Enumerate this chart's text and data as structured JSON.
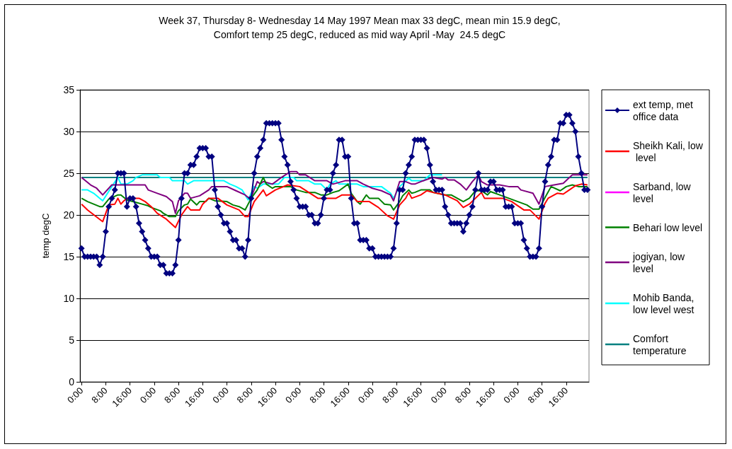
{
  "chart_data": {
    "type": "line",
    "title": "Week 37, Thursday 8- Wednesday 14 May 1997 Mean max 33 degC, mean min 15.9 degC,\nComfort temp 25 degC, reduced as mid way April -May  24.5 degC",
    "ylabel": "temp degC",
    "x": [
      "1997-05-08T00:00",
      "1997-05-08T01:00",
      "1997-05-08T02:00",
      "1997-05-08T03:00",
      "1997-05-08T04:00",
      "1997-05-08T05:00",
      "1997-05-08T06:00",
      "1997-05-08T07:00",
      "1997-05-08T08:00",
      "1997-05-08T09:00",
      "1997-05-08T10:00",
      "1997-05-08T11:00",
      "1997-05-08T12:00",
      "1997-05-08T13:00",
      "1997-05-08T14:00",
      "1997-05-08T15:00",
      "1997-05-08T16:00",
      "1997-05-08T17:00",
      "1997-05-08T18:00",
      "1997-05-08T19:00",
      "1997-05-08T20:00",
      "1997-05-08T21:00",
      "1997-05-08T22:00",
      "1997-05-08T23:00",
      "1997-05-09T00:00",
      "1997-05-09T01:00",
      "1997-05-09T02:00",
      "1997-05-09T03:00",
      "1997-05-09T04:00",
      "1997-05-09T05:00",
      "1997-05-09T06:00",
      "1997-05-09T07:00",
      "1997-05-09T08:00",
      "1997-05-09T09:00",
      "1997-05-09T10:00",
      "1997-05-09T11:00",
      "1997-05-09T12:00",
      "1997-05-09T13:00",
      "1997-05-09T14:00",
      "1997-05-09T15:00",
      "1997-05-09T16:00",
      "1997-05-09T17:00",
      "1997-05-09T18:00",
      "1997-05-09T19:00",
      "1997-05-09T20:00",
      "1997-05-09T21:00",
      "1997-05-09T22:00",
      "1997-05-09T23:00",
      "1997-05-10T00:00",
      "1997-05-10T01:00",
      "1997-05-10T02:00",
      "1997-05-10T03:00",
      "1997-05-10T04:00",
      "1997-05-10T05:00",
      "1997-05-10T06:00",
      "1997-05-10T07:00",
      "1997-05-10T08:00",
      "1997-05-10T09:00",
      "1997-05-10T10:00",
      "1997-05-10T11:00",
      "1997-05-10T12:00",
      "1997-05-10T13:00",
      "1997-05-10T14:00",
      "1997-05-10T15:00",
      "1997-05-10T16:00",
      "1997-05-10T17:00",
      "1997-05-10T18:00",
      "1997-05-10T19:00",
      "1997-05-10T20:00",
      "1997-05-10T21:00",
      "1997-05-10T22:00",
      "1997-05-10T23:00",
      "1997-05-11T00:00",
      "1997-05-11T01:00",
      "1997-05-11T02:00",
      "1997-05-11T03:00",
      "1997-05-11T04:00",
      "1997-05-11T05:00",
      "1997-05-11T06:00",
      "1997-05-11T07:00",
      "1997-05-11T08:00",
      "1997-05-11T09:00",
      "1997-05-11T10:00",
      "1997-05-11T11:00",
      "1997-05-11T12:00",
      "1997-05-11T13:00",
      "1997-05-11T14:00",
      "1997-05-11T15:00",
      "1997-05-11T16:00",
      "1997-05-11T17:00",
      "1997-05-11T18:00",
      "1997-05-11T19:00",
      "1997-05-11T20:00",
      "1997-05-11T21:00",
      "1997-05-11T22:00",
      "1997-05-11T23:00",
      "1997-05-12T00:00",
      "1997-05-12T01:00",
      "1997-05-12T02:00",
      "1997-05-12T03:00",
      "1997-05-12T04:00",
      "1997-05-12T05:00",
      "1997-05-12T06:00",
      "1997-05-12T07:00",
      "1997-05-12T08:00",
      "1997-05-12T09:00",
      "1997-05-12T10:00",
      "1997-05-12T11:00",
      "1997-05-12T12:00",
      "1997-05-12T13:00",
      "1997-05-12T14:00",
      "1997-05-12T15:00",
      "1997-05-12T16:00",
      "1997-05-12T17:00",
      "1997-05-12T18:00",
      "1997-05-12T19:00",
      "1997-05-12T20:00",
      "1997-05-12T21:00",
      "1997-05-12T22:00",
      "1997-05-12T23:00",
      "1997-05-13T00:00",
      "1997-05-13T01:00",
      "1997-05-13T02:00",
      "1997-05-13T03:00",
      "1997-05-13T04:00",
      "1997-05-13T05:00",
      "1997-05-13T06:00",
      "1997-05-13T07:00",
      "1997-05-13T08:00",
      "1997-05-13T09:00",
      "1997-05-13T10:00",
      "1997-05-13T11:00",
      "1997-05-13T12:00",
      "1997-05-13T13:00",
      "1997-05-13T14:00",
      "1997-05-13T15:00",
      "1997-05-13T16:00",
      "1997-05-13T17:00",
      "1997-05-13T18:00",
      "1997-05-13T19:00",
      "1997-05-13T20:00",
      "1997-05-13T21:00",
      "1997-05-13T22:00",
      "1997-05-13T23:00",
      "1997-05-14T00:00",
      "1997-05-14T01:00",
      "1997-05-14T02:00",
      "1997-05-14T03:00",
      "1997-05-14T04:00",
      "1997-05-14T05:00",
      "1997-05-14T06:00",
      "1997-05-14T07:00",
      "1997-05-14T08:00",
      "1997-05-14T09:00",
      "1997-05-14T10:00",
      "1997-05-14T11:00",
      "1997-05-14T12:00",
      "1997-05-14T13:00",
      "1997-05-14T14:00",
      "1997-05-14T15:00",
      "1997-05-14T16:00",
      "1997-05-14T17:00",
      "1997-05-14T18:00",
      "1997-05-14T19:00",
      "1997-05-14T20:00",
      "1997-05-14T21:00",
      "1997-05-14T22:00",
      "1997-05-14T23:00"
    ],
    "xlim": [
      "1997-05-07T23:30",
      "1997-05-14T23:30"
    ],
    "xticks": [
      {
        "value": "1997-05-08T00:00",
        "label": "0:00"
      },
      {
        "value": "1997-05-08T08:00",
        "label": "8:00"
      },
      {
        "value": "1997-05-08T16:00",
        "label": "16:00"
      },
      {
        "value": "1997-05-09T00:00",
        "label": "0:00"
      },
      {
        "value": "1997-05-09T08:00",
        "label": "8:00"
      },
      {
        "value": "1997-05-09T16:00",
        "label": "16:00"
      },
      {
        "value": "1997-05-10T00:00",
        "label": "0:00"
      },
      {
        "value": "1997-05-10T08:00",
        "label": "8:00"
      },
      {
        "value": "1997-05-10T16:00",
        "label": "16:00"
      },
      {
        "value": "1997-05-11T00:00",
        "label": "0:00"
      },
      {
        "value": "1997-05-11T08:00",
        "label": "8:00"
      },
      {
        "value": "1997-05-11T16:00",
        "label": "16:00"
      },
      {
        "value": "1997-05-12T00:00",
        "label": "0:00"
      },
      {
        "value": "1997-05-12T08:00",
        "label": "8:00"
      },
      {
        "value": "1997-05-12T16:00",
        "label": "16:00"
      },
      {
        "value": "1997-05-13T00:00",
        "label": "0:00"
      },
      {
        "value": "1997-05-13T08:00",
        "label": "8:00"
      },
      {
        "value": "1997-05-13T16:00",
        "label": "16:00"
      },
      {
        "value": "1997-05-14T00:00",
        "label": "0:00"
      },
      {
        "value": "1997-05-14T08:00",
        "label": "8:00"
      },
      {
        "value": "1997-05-14T16:00",
        "label": "16:00"
      }
    ],
    "ylim": [
      0,
      35
    ],
    "yticks": [
      0,
      5,
      10,
      15,
      20,
      25,
      30,
      35
    ],
    "grid": "y",
    "legend": "right",
    "marker": "none",
    "series": [
      {
        "name": "ext temp, met office data",
        "color": "#000080",
        "marker": "diamond",
        "values": [
          16,
          15,
          15,
          15,
          15,
          15,
          14,
          15,
          18,
          21,
          22,
          23,
          25,
          25,
          25,
          21,
          22,
          22,
          21,
          19,
          18,
          17,
          16,
          15,
          15,
          15,
          14,
          14,
          13,
          13,
          13,
          14,
          17,
          22,
          25,
          25,
          26,
          26,
          27,
          28,
          28,
          28,
          27,
          27,
          23,
          21,
          20,
          19,
          19,
          18,
          17,
          17,
          16,
          16,
          15,
          17,
          22,
          25,
          27,
          28,
          29,
          31,
          31,
          31,
          31,
          31,
          29,
          27,
          26,
          24,
          23,
          22,
          21,
          21,
          21,
          20,
          20,
          19,
          19,
          20,
          22,
          23,
          23,
          25,
          26,
          29,
          29,
          27,
          27,
          22,
          19,
          19,
          17,
          17,
          17,
          16,
          16,
          15,
          15,
          15,
          15,
          15,
          15,
          16,
          19,
          23,
          23,
          25,
          26,
          27,
          29,
          29,
          29,
          29,
          28,
          26,
          24,
          23,
          23,
          23,
          21,
          20,
          19,
          19,
          19,
          19,
          18,
          19,
          20,
          21,
          23,
          25,
          23,
          23,
          23,
          24,
          24,
          23,
          23,
          23,
          21,
          21,
          21,
          19,
          19,
          19,
          17,
          16,
          15,
          15,
          15,
          16,
          21,
          24,
          26,
          27,
          29,
          29,
          31,
          31,
          32,
          32,
          31,
          30,
          27,
          25,
          23,
          23
        ]
      },
      {
        "name": "Sheikh Kali, low level",
        "color": "#ff0000",
        "x": [
          "1997-05-08T00:00",
          "1997-05-08T02:00",
          "1997-05-08T07:00",
          "1997-05-08T09:00",
          "1997-05-08T11:00",
          "1997-05-08T12:00",
          "1997-05-08T13:00",
          "1997-05-08T14:00",
          "1997-05-08T15:00",
          "1997-05-08T19:00",
          "1997-05-08T21:00",
          "1997-05-08T23:00",
          "1997-05-09T01:00",
          "1997-05-09T04:00",
          "1997-05-09T07:00",
          "1997-05-09T09:00",
          "1997-05-09T11:00",
          "1997-05-09T12:00",
          "1997-05-09T15:00",
          "1997-05-09T16:00",
          "1997-05-09T18:00",
          "1997-05-09T21:00",
          "1997-05-10T00:00",
          "1997-05-10T04:00",
          "1997-05-10T06:00",
          "1997-05-10T07:00",
          "1997-05-10T09:00",
          "1997-05-10T12:00",
          "1997-05-10T13:00",
          "1997-05-10T16:00",
          "1997-05-10T20:00",
          "1997-05-11T00:00",
          "1997-05-11T03:00",
          "1997-05-11T06:00",
          "1997-05-11T12:00",
          "1997-05-11T14:00",
          "1997-05-11T17:00",
          "1997-05-11T19:00",
          "1997-05-11T23:00",
          "1997-05-12T02:00",
          "1997-05-12T05:00",
          "1997-05-12T07:00",
          "1997-05-12T09:00",
          "1997-05-12T11:00",
          "1997-05-12T12:00",
          "1997-05-12T13:00",
          "1997-05-12T16:00",
          "1997-05-12T18:00",
          "1997-05-12T20:00",
          "1997-05-13T00:00",
          "1997-05-13T04:00",
          "1997-05-13T06:00",
          "1997-05-13T08:00",
          "1997-05-13T12:00",
          "1997-05-13T13:00",
          "1997-05-13T19:00",
          "1997-05-13T22:00",
          "1997-05-14T02:00",
          "1997-05-14T04:00",
          "1997-05-14T07:00",
          "1997-05-14T09:00",
          "1997-05-14T10:00",
          "1997-05-14T13:00",
          "1997-05-14T15:00",
          "1997-05-14T17:00",
          "1997-05-14T19:00",
          "1997-05-14T21:00",
          "1997-05-14T23:00"
        ],
        "values": [
          21.3,
          20.6,
          19.2,
          21.2,
          21.3,
          22,
          21.3,
          21.7,
          22,
          22,
          21.6,
          21,
          20.2,
          19.5,
          18.5,
          20,
          21,
          20.6,
          20.6,
          21.3,
          22,
          22,
          21.2,
          20.6,
          19.8,
          19.8,
          21.6,
          23,
          22.3,
          23,
          23.6,
          23.4,
          22.7,
          22,
          22,
          22.4,
          22.4,
          21.6,
          21.6,
          20.9,
          19.9,
          19.5,
          21.2,
          22,
          22.7,
          22,
          22.4,
          22.9,
          22.7,
          22.4,
          21.7,
          20.9,
          21.3,
          22.7,
          22,
          22,
          21.6,
          20.6,
          20.6,
          19.5,
          21.4,
          22,
          22.6,
          22.5,
          23,
          23.5,
          23.7,
          23.6
        ]
      },
      {
        "name": "Sarband, low level",
        "color": "#ff00ff",
        "values": [
          null,
          null,
          null,
          null,
          null,
          null,
          null,
          null,
          null,
          null,
          null,
          null,
          null,
          null,
          null,
          null,
          null,
          null,
          null,
          null,
          null,
          null,
          null,
          null,
          null,
          null,
          null,
          null,
          null,
          null,
          null,
          null,
          null,
          null,
          null,
          null,
          null,
          null,
          null,
          null,
          null,
          null,
          null,
          null,
          null,
          null,
          null,
          null,
          null,
          null,
          null,
          null,
          null,
          null,
          null,
          null,
          null,
          null,
          null,
          null,
          null,
          null,
          null,
          null,
          null,
          null,
          null,
          null,
          null,
          null,
          null,
          null,
          null,
          null,
          null,
          null,
          null,
          null,
          null,
          null,
          null,
          null,
          null,
          null,
          null,
          null,
          null,
          null,
          null,
          null,
          null,
          null,
          null,
          null,
          null,
          null,
          null,
          null,
          null,
          null,
          null,
          null,
          null,
          null,
          null,
          null,
          null,
          null,
          null,
          null,
          null,
          null,
          null,
          null,
          null,
          null,
          null,
          null,
          null,
          null,
          null,
          null,
          null,
          null,
          null,
          null,
          null,
          null,
          null,
          null,
          null,
          null,
          null,
          null,
          null,
          null,
          null,
          null,
          null,
          null,
          null,
          null,
          null,
          null,
          null,
          null,
          null,
          null,
          null,
          null,
          null,
          null,
          null,
          null,
          null,
          null,
          null,
          null,
          null,
          null,
          null,
          null,
          null,
          null,
          null,
          null,
          null,
          null
        ]
      },
      {
        "name": "Behari low level",
        "color": "#008000",
        "x": [
          "1997-05-08T00:00",
          "1997-05-08T02:00",
          "1997-05-08T04:00",
          "1997-05-08T06:00",
          "1997-05-08T07:00",
          "1997-05-08T09:00",
          "1997-05-08T12:00",
          "1997-05-08T13:00",
          "1997-05-08T15:00",
          "1997-05-08T18:00",
          "1997-05-08T20:00",
          "1997-05-08T22:00",
          "1997-05-08T23:00",
          "1997-05-09T02:00",
          "1997-05-09T03:00",
          "1997-05-09T05:00",
          "1997-05-09T07:00",
          "1997-05-09T08:00",
          "1997-05-09T10:00",
          "1997-05-09T11:00",
          "1997-05-09T12:00",
          "1997-05-09T14:00",
          "1997-05-09T15:00",
          "1997-05-09T17:00",
          "1997-05-09T18:00",
          "1997-05-09T20:00",
          "1997-05-10T00:00",
          "1997-05-10T02:00",
          "1997-05-10T04:00",
          "1997-05-10T06:00",
          "1997-05-10T08:00",
          "1997-05-10T10:00",
          "1997-05-10T12:00",
          "1997-05-10T13:00",
          "1997-05-10T15:00",
          "1997-05-10T16:00",
          "1997-05-10T21:00",
          "1997-05-10T23:00",
          "1997-05-11T02:00",
          "1997-05-11T05:00",
          "1997-05-11T07:00",
          "1997-05-11T09:00",
          "1997-05-11T11:00",
          "1997-05-11T13:00",
          "1997-05-11T16:00",
          "1997-05-11T17:00",
          "1997-05-11T19:00",
          "1997-05-11T20:00",
          "1997-05-11T22:00",
          "1997-05-11T23:00",
          "1997-05-12T02:00",
          "1997-05-12T04:00",
          "1997-05-12T06:00",
          "1997-05-12T07:00",
          "1997-05-12T09:00",
          "1997-05-12T10:00",
          "1997-05-12T12:00",
          "1997-05-12T13:00",
          "1997-05-12T14:00",
          "1997-05-12T16:00",
          "1997-05-12T19:00",
          "1997-05-12T20:00",
          "1997-05-13T00:00",
          "1997-05-13T02:00",
          "1997-05-13T04:00",
          "1997-05-13T06:00",
          "1997-05-13T08:00",
          "1997-05-13T10:00",
          "1997-05-13T12:00",
          "1997-05-13T14:00",
          "1997-05-13T15:00",
          "1997-05-13T18:00",
          "1997-05-13T21:00",
          "1997-05-14T00:00",
          "1997-05-14T03:00",
          "1997-05-14T05:00",
          "1997-05-14T07:00",
          "1997-05-14T09:00",
          "1997-05-14T11:00",
          "1997-05-14T14:00",
          "1997-05-14T16:00",
          "1997-05-14T18:00",
          "1997-05-14T20:00",
          "1997-05-14T23:00"
        ],
        "values": [
          22,
          21.6,
          21.3,
          21,
          21,
          21.9,
          22.4,
          22.4,
          21.8,
          21.5,
          21.3,
          21.1,
          20.9,
          20.5,
          20.2,
          19.8,
          19.8,
          20.5,
          21.2,
          21.3,
          21.9,
          21.2,
          21.6,
          21.6,
          22,
          21.7,
          21.6,
          21.2,
          21,
          20.6,
          22,
          23,
          24.5,
          23.7,
          23.2,
          23.4,
          23.4,
          23,
          22.7,
          22.7,
          22.4,
          22.4,
          22.7,
          22.9,
          23.7,
          22.6,
          21.6,
          21.3,
          22.4,
          22,
          22,
          21.3,
          21.2,
          20.6,
          21.6,
          22.3,
          23,
          22.6,
          22.7,
          23,
          23,
          22.7,
          22.4,
          22.4,
          22,
          21.6,
          22,
          22.9,
          22.9,
          22.4,
          22.8,
          22.4,
          22,
          21.6,
          21.2,
          20.7,
          20.7,
          22.1,
          23.4,
          22.9,
          23.4,
          23.6,
          23.4,
          23.4
        ]
      },
      {
        "name": "jogiyan, low level",
        "color": "#800080",
        "x": [
          "1997-05-08T00:00",
          "1997-05-08T03:00",
          "1997-05-08T05:00",
          "1997-05-08T07:00",
          "1997-05-08T10:00",
          "1997-05-08T21:00",
          "1997-05-08T22:00",
          "1997-05-09T01:00",
          "1997-05-09T04:00",
          "1997-05-09T06:00",
          "1997-05-09T07:00",
          "1997-05-09T08:00",
          "1997-05-09T10:00",
          "1997-05-09T11:00",
          "1997-05-09T12:00",
          "1997-05-09T15:00",
          "1997-05-09T18:00",
          "1997-05-09T19:00",
          "1997-05-10T00:00",
          "1997-05-10T03:00",
          "1997-05-10T06:00",
          "1997-05-10T07:00",
          "1997-05-10T08:00",
          "1997-05-10T10:00",
          "1997-05-10T11:00",
          "1997-05-10T12:00",
          "1997-05-10T15:00",
          "1997-05-10T18:00",
          "1997-05-10T21:00",
          "1997-05-10T23:00",
          "1997-05-11T00:00",
          "1997-05-11T02:00",
          "1997-05-11T05:00",
          "1997-05-11T09:00",
          "1997-05-11T11:00",
          "1997-05-11T15:00",
          "1997-05-11T19:00",
          "1997-05-11T21:00",
          "1997-05-12T00:00",
          "1997-05-12T03:00",
          "1997-05-12T06:00",
          "1997-05-12T07:00",
          "1997-05-12T09:00",
          "1997-05-12T11:00",
          "1997-05-12T13:00",
          "1997-05-12T14:00",
          "1997-05-12T16:00",
          "1997-05-12T20:00",
          "1997-05-12T23:00",
          "1997-05-13T00:00",
          "1997-05-13T01:00",
          "1997-05-13T03:00",
          "1997-05-13T05:00",
          "1997-05-13T07:00",
          "1997-05-13T09:00",
          "1997-05-13T11:00",
          "1997-05-13T12:00",
          "1997-05-13T14:00",
          "1997-05-13T18:00",
          "1997-05-13T21:00",
          "1997-05-14T00:00",
          "1997-05-14T01:00",
          "1997-05-14T05:00",
          "1997-05-14T07:00",
          "1997-05-14T09:00",
          "1997-05-14T12:00",
          "1997-05-14T15:00",
          "1997-05-14T18:00",
          "1997-05-14T23:00"
        ],
        "values": [
          24.5,
          23.6,
          23.2,
          22.4,
          23.6,
          23.6,
          23,
          22.6,
          22.2,
          21.6,
          20.2,
          21.7,
          22.6,
          22.6,
          22,
          22.3,
          23,
          23.4,
          23.4,
          22.9,
          22.4,
          22.1,
          22.1,
          24,
          23.7,
          24,
          23.7,
          24.5,
          25.2,
          25.2,
          24.8,
          24.8,
          24.1,
          24.1,
          23.7,
          24.1,
          24.1,
          23.7,
          23.2,
          22.9,
          22.4,
          21.7,
          24,
          24,
          23.7,
          23.7,
          24,
          24.5,
          24.3,
          24.5,
          24.2,
          24.2,
          23.7,
          23,
          24,
          24.8,
          24,
          23.6,
          23.6,
          23.4,
          23.4,
          23,
          22.6,
          21.3,
          23.4,
          23.6,
          23.8,
          24.8,
          24.8
        ]
      },
      {
        "name": "Mohib Banda, low level west",
        "color": "#00ffff",
        "x": [
          "1997-05-08T00:00",
          "1997-05-08T02:00",
          "1997-05-08T04:00",
          "1997-05-08T07:00",
          "1997-05-08T10:00",
          "1997-05-08T12:00",
          "1997-05-08T13:00",
          "1997-05-08T15:00",
          "1997-05-08T17:00",
          "1997-05-08T18:00",
          "1997-05-08T20:00",
          "1997-05-09T01:00",
          "1997-05-09T02:00",
          "1997-05-09T05:00",
          "1997-05-09T06:00",
          "1997-05-09T10:00",
          "1997-05-09T11:00",
          "1997-05-09T13:00",
          "1997-05-09T23:00",
          "1997-05-10T01:00",
          "1997-05-10T03:00",
          "1997-05-10T05:00",
          "1997-05-10T07:00",
          "1997-05-10T09:00",
          "1997-05-10T10:00",
          "1997-05-10T12:00",
          "1997-05-10T17:00",
          "1997-05-10T19:00",
          "1997-05-10T22:00",
          "1997-05-10T23:00",
          "1997-05-11T03:00",
          "1997-05-11T05:00",
          "1997-05-11T07:00",
          "1997-05-11T09:00",
          "1997-05-11T10:00",
          "1997-05-11T12:00",
          "1997-05-11T13:00",
          "1997-05-11T19:00",
          "1997-05-11T21:00",
          "1997-05-12T03:00",
          "1997-05-12T06:00",
          "1997-05-12T07:00",
          "1997-05-12T09:00",
          "1997-05-12T12:00",
          "1997-05-12T13:00",
          "1997-05-12T17:00",
          "1997-05-12T18:00",
          "1997-05-12T19:00",
          "1997-05-12T23:00"
        ],
        "values": [
          23,
          23,
          22.6,
          21.7,
          23.4,
          24.5,
          23.7,
          23.7,
          24.1,
          24.5,
          24.8,
          24.8,
          24.5,
          24.5,
          24.1,
          24.1,
          23.7,
          24.1,
          24.1,
          23.7,
          23.4,
          23,
          21.8,
          23.4,
          23.2,
          23.7,
          23.7,
          24.5,
          24.5,
          24.1,
          24.1,
          23.7,
          23.7,
          23,
          23.7,
          24.1,
          23.7,
          23.7,
          23.4,
          23.4,
          22.6,
          22,
          23.4,
          24.4,
          24.1,
          24.1,
          24.5,
          24.8,
          24.8
        ]
      },
      {
        "name": "Comfort temperature",
        "color": "#008080",
        "x": [
          "1997-05-08T00:00",
          "1997-05-14T23:00"
        ],
        "values": [
          24.5,
          24.5
        ]
      }
    ]
  }
}
